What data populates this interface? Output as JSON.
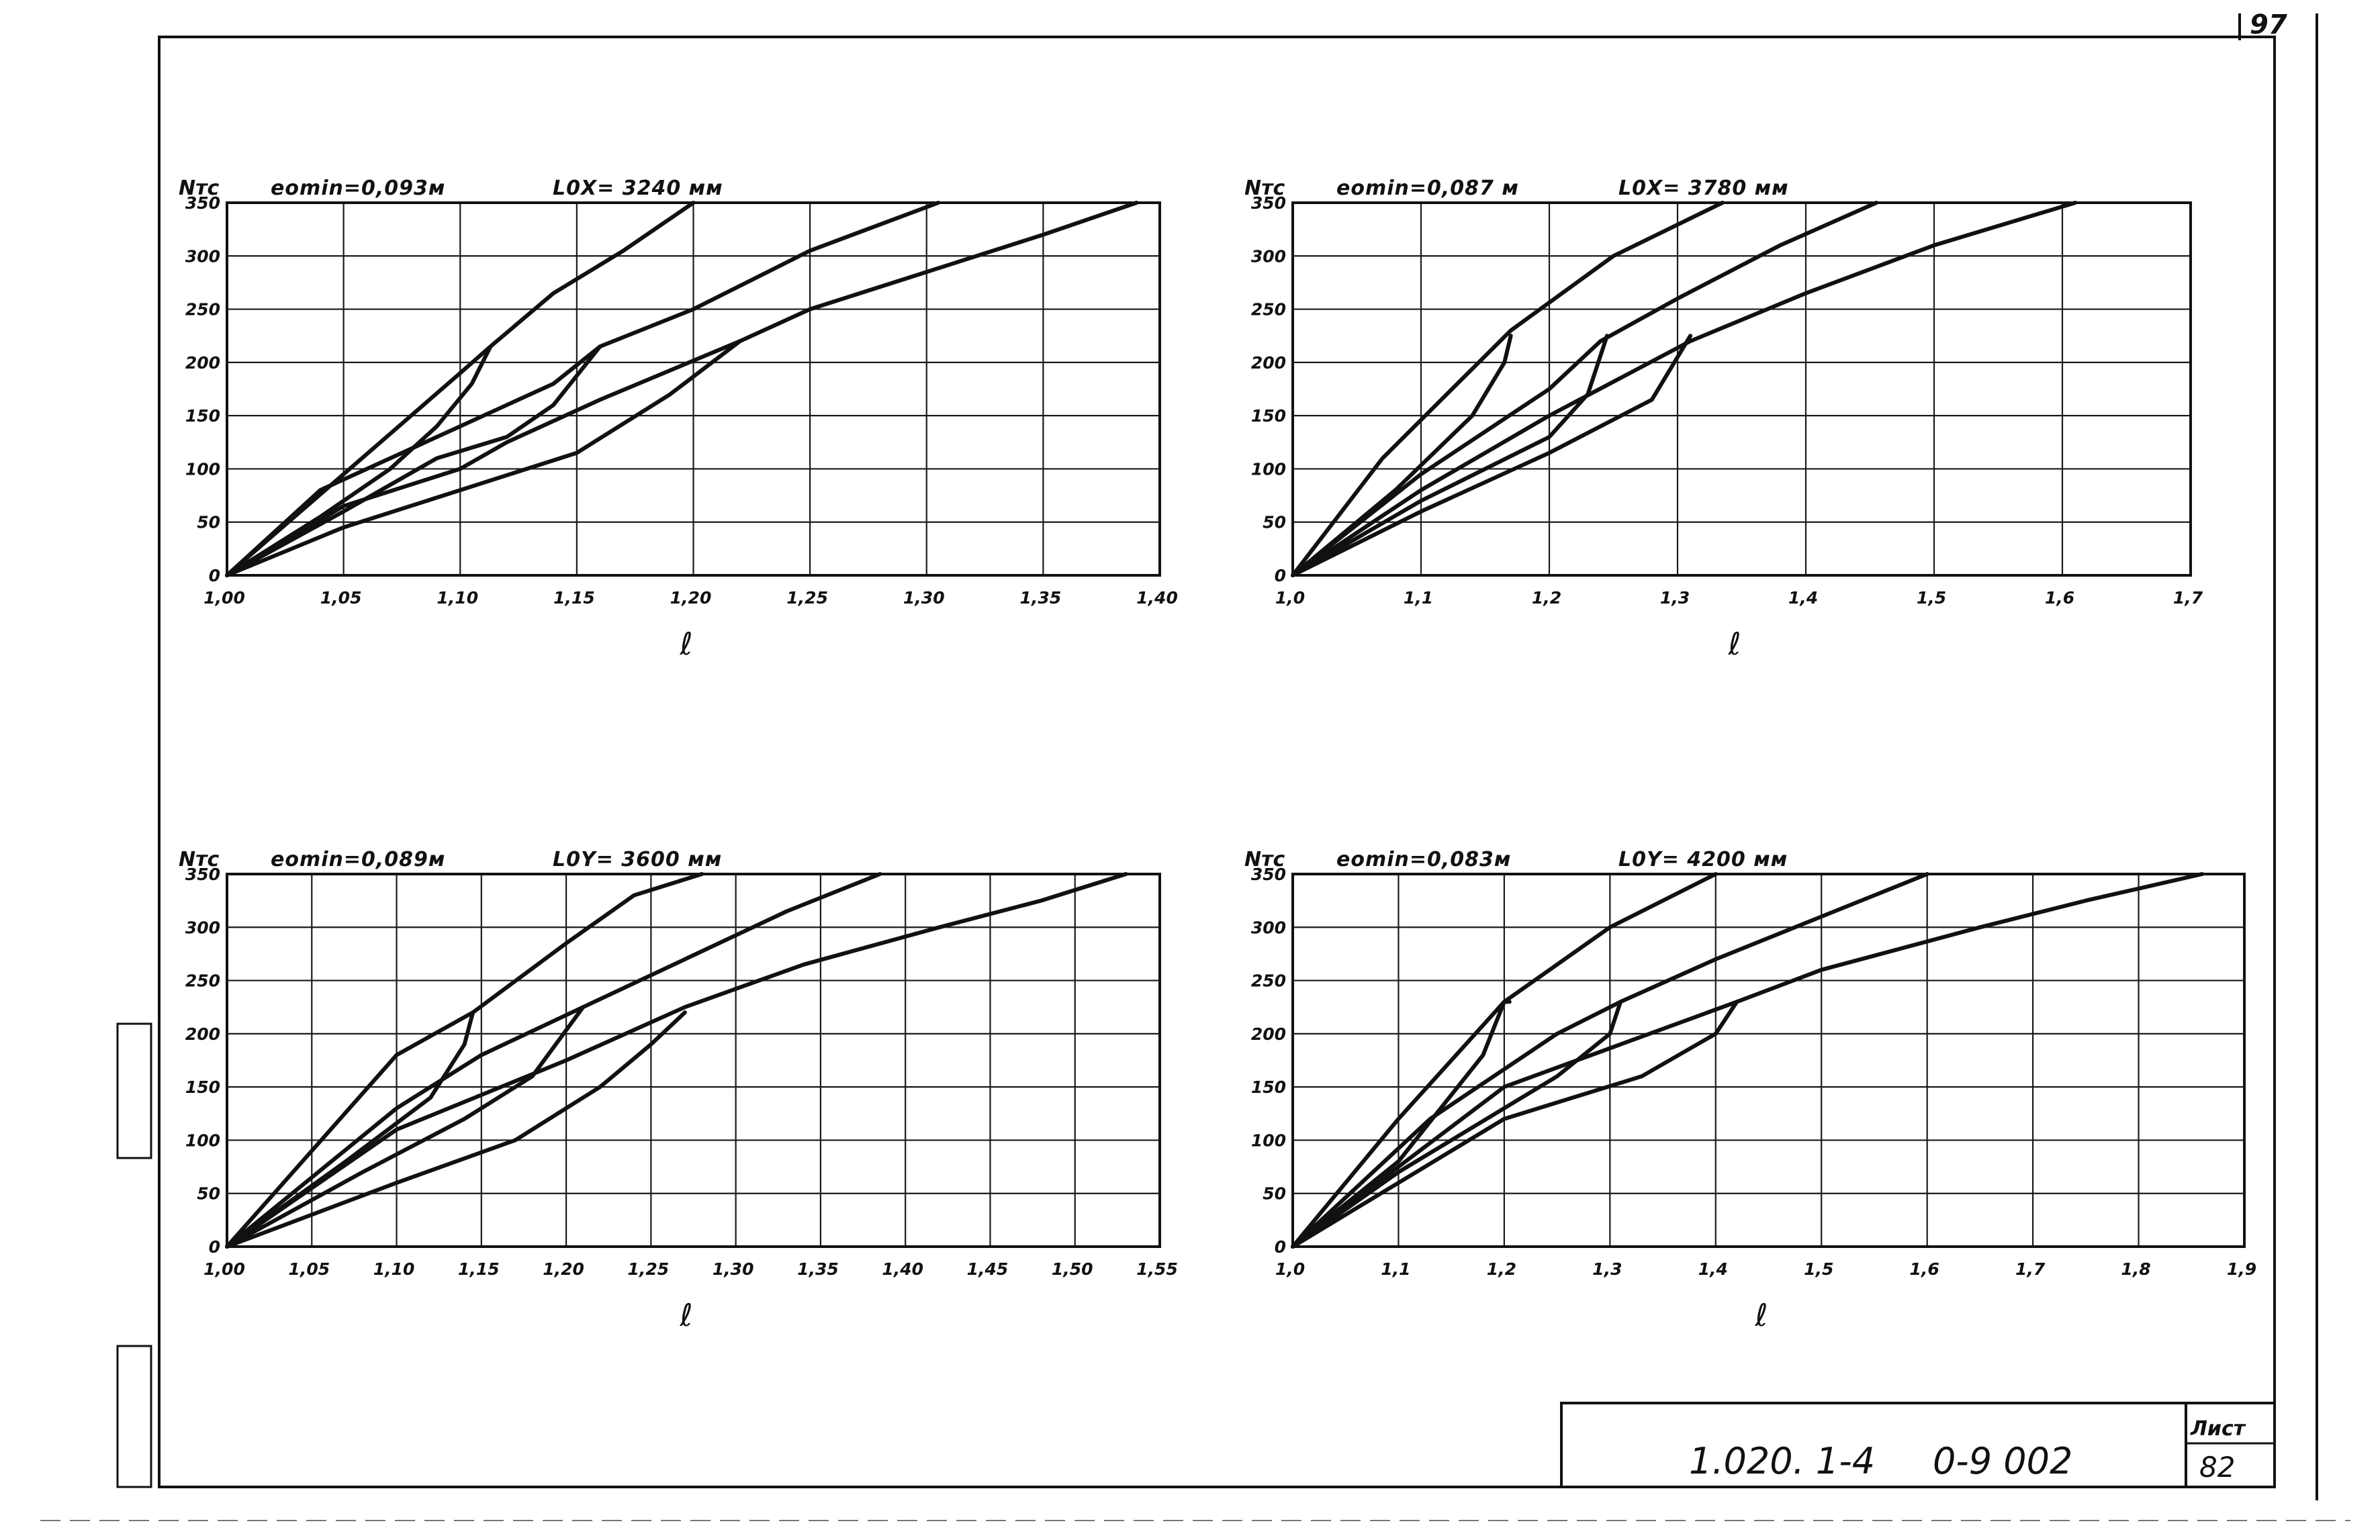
{
  "sheet": {
    "page_number": "97",
    "doc_code": "1.020. 1-4     0-9 002",
    "list_label": "Лист",
    "list_number": "82"
  },
  "chart_data": [
    {
      "type": "line",
      "header_e": "eomin=0,093м",
      "header_l": "L0X= 3240 мм",
      "ylabel": "Nтс",
      "xlabel": "ℓ",
      "xlim": [
        1.0,
        1.4
      ],
      "ylim": [
        0,
        350
      ],
      "x_ticks": [
        "1,00",
        "1,05",
        "1,10",
        "1,15",
        "1,20",
        "1,25",
        "1,30",
        "1,35",
        "1,40"
      ],
      "y_ticks": [
        "0",
        "50",
        "100",
        "150",
        "200",
        "250",
        "300",
        "350"
      ],
      "grid": true,
      "series": [
        {
          "x": [
            1.0,
            1.1,
            1.113,
            1.14,
            1.17,
            1.2
          ],
          "y": [
            0,
            190,
            215,
            265,
            305,
            350
          ]
        },
        {
          "x": [
            1.0,
            1.04,
            1.07,
            1.1,
            1.14,
            1.16,
            1.2,
            1.25,
            1.305
          ],
          "y": [
            0,
            80,
            110,
            140,
            180,
            215,
            250,
            305,
            350
          ]
        },
        {
          "x": [
            1.0,
            1.05,
            1.1,
            1.12,
            1.16,
            1.22,
            1.25,
            1.3,
            1.35,
            1.39
          ],
          "y": [
            0,
            65,
            100,
            125,
            165,
            220,
            250,
            285,
            320,
            350
          ]
        },
        {
          "x": [
            1.0,
            1.05,
            1.09,
            1.12,
            1.14,
            1.16
          ],
          "y": [
            0,
            60,
            110,
            130,
            160,
            215
          ]
        },
        {
          "x": [
            1.0,
            1.05,
            1.1,
            1.15,
            1.19,
            1.22
          ],
          "y": [
            0,
            45,
            80,
            115,
            170,
            220
          ]
        },
        {
          "x": [
            1.113,
            1.105,
            1.09,
            1.07,
            1.04,
            1.0
          ],
          "y": [
            215,
            180,
            140,
            100,
            55,
            0
          ]
        }
      ]
    },
    {
      "type": "line",
      "header_e": "eomin=0,087 м",
      "header_l": "L0X= 3780 мм",
      "ylabel": "Nтс",
      "xlabel": "ℓ",
      "xlim": [
        1.0,
        1.7
      ],
      "ylim": [
        0,
        350
      ],
      "x_ticks": [
        "1,0",
        "1,1",
        "1,2",
        "1,3",
        "1,4",
        "1,5",
        "1,6",
        "1,7"
      ],
      "y_ticks": [
        "0",
        "50",
        "100",
        "150",
        "200",
        "250",
        "300",
        "350"
      ],
      "grid": true,
      "series": [
        {
          "x": [
            1.0,
            1.07,
            1.17,
            1.25,
            1.335
          ],
          "y": [
            0,
            110,
            230,
            300,
            350
          ]
        },
        {
          "x": [
            1.0,
            1.1,
            1.2,
            1.24,
            1.3,
            1.38,
            1.455
          ],
          "y": [
            0,
            95,
            175,
            220,
            260,
            310,
            350
          ]
        },
        {
          "x": [
            1.0,
            1.1,
            1.2,
            1.31,
            1.4,
            1.5,
            1.61
          ],
          "y": [
            0,
            80,
            150,
            220,
            265,
            310,
            350
          ]
        },
        {
          "x": [
            1.0,
            1.08,
            1.14,
            1.165,
            1.17
          ],
          "y": [
            0,
            80,
            150,
            200,
            225
          ]
        },
        {
          "x": [
            1.0,
            1.1,
            1.2,
            1.23,
            1.245
          ],
          "y": [
            0,
            70,
            130,
            170,
            225
          ]
        },
        {
          "x": [
            1.0,
            1.1,
            1.2,
            1.28,
            1.31
          ],
          "y": [
            0,
            60,
            115,
            165,
            225
          ]
        }
      ]
    },
    {
      "type": "line",
      "header_e": "eomin=0,089м",
      "header_l": "L0Y= 3600 мм",
      "ylabel": "Nтс",
      "xlabel": "ℓ",
      "xlim": [
        1.0,
        1.55
      ],
      "ylim": [
        0,
        350
      ],
      "x_ticks": [
        "1,00",
        "1,05",
        "1,10",
        "1,15",
        "1,20",
        "1,25",
        "1,30",
        "1,35",
        "1,40",
        "1,45",
        "1,50",
        "1,55"
      ],
      "y_ticks": [
        "0",
        "50",
        "100",
        "150",
        "200",
        "250",
        "300",
        "350"
      ],
      "grid": true,
      "series": [
        {
          "x": [
            1.0,
            1.1,
            1.145,
            1.2,
            1.24,
            1.28
          ],
          "y": [
            0,
            180,
            220,
            285,
            330,
            350
          ]
        },
        {
          "x": [
            1.0,
            1.1,
            1.15,
            1.21,
            1.27,
            1.33,
            1.385
          ],
          "y": [
            0,
            130,
            180,
            225,
            270,
            315,
            350
          ]
        },
        {
          "x": [
            1.0,
            1.1,
            1.2,
            1.27,
            1.34,
            1.42,
            1.48,
            1.53
          ],
          "y": [
            0,
            110,
            175,
            225,
            265,
            300,
            325,
            350
          ]
        },
        {
          "x": [
            1.0,
            1.07,
            1.12,
            1.14,
            1.145
          ],
          "y": [
            0,
            80,
            140,
            190,
            220
          ]
        },
        {
          "x": [
            1.0,
            1.08,
            1.14,
            1.18,
            1.21
          ],
          "y": [
            0,
            70,
            120,
            160,
            225
          ]
        },
        {
          "x": [
            1.0,
            1.1,
            1.17,
            1.22,
            1.25,
            1.27
          ],
          "y": [
            0,
            60,
            100,
            150,
            190,
            220
          ]
        }
      ]
    },
    {
      "type": "line",
      "header_e": "eomin=0,083м",
      "header_l": "L0Y= 4200 мм",
      "ylabel": "Nтс",
      "xlabel": "ℓ",
      "xlim": [
        1.0,
        1.9
      ],
      "ylim": [
        0,
        350
      ],
      "x_ticks": [
        "1,0",
        "1,1",
        "1,2",
        "1,3",
        "1,4",
        "1,5",
        "1,6",
        "1,7",
        "1,8",
        "1,9"
      ],
      "y_ticks": [
        "0",
        "50",
        "100",
        "150",
        "200",
        "250",
        "300",
        "350"
      ],
      "grid": true,
      "series": [
        {
          "x": [
            1.0,
            1.1,
            1.2,
            1.3,
            1.4
          ],
          "y": [
            0,
            120,
            230,
            300,
            350
          ]
        },
        {
          "x": [
            1.0,
            1.13,
            1.25,
            1.31,
            1.4,
            1.5,
            1.6
          ],
          "y": [
            0,
            120,
            200,
            230,
            270,
            310,
            350
          ]
        },
        {
          "x": [
            1.0,
            1.2,
            1.42,
            1.5,
            1.65,
            1.75,
            1.86
          ],
          "y": [
            0,
            150,
            230,
            260,
            300,
            325,
            350
          ]
        },
        {
          "x": [
            1.0,
            1.1,
            1.18,
            1.2,
            1.205
          ],
          "y": [
            0,
            80,
            180,
            230,
            230
          ]
        },
        {
          "x": [
            1.0,
            1.1,
            1.25,
            1.3,
            1.31
          ],
          "y": [
            0,
            70,
            160,
            200,
            230
          ]
        },
        {
          "x": [
            1.0,
            1.1,
            1.2,
            1.33,
            1.4,
            1.42
          ],
          "y": [
            0,
            60,
            120,
            160,
            200,
            230
          ]
        }
      ]
    }
  ]
}
